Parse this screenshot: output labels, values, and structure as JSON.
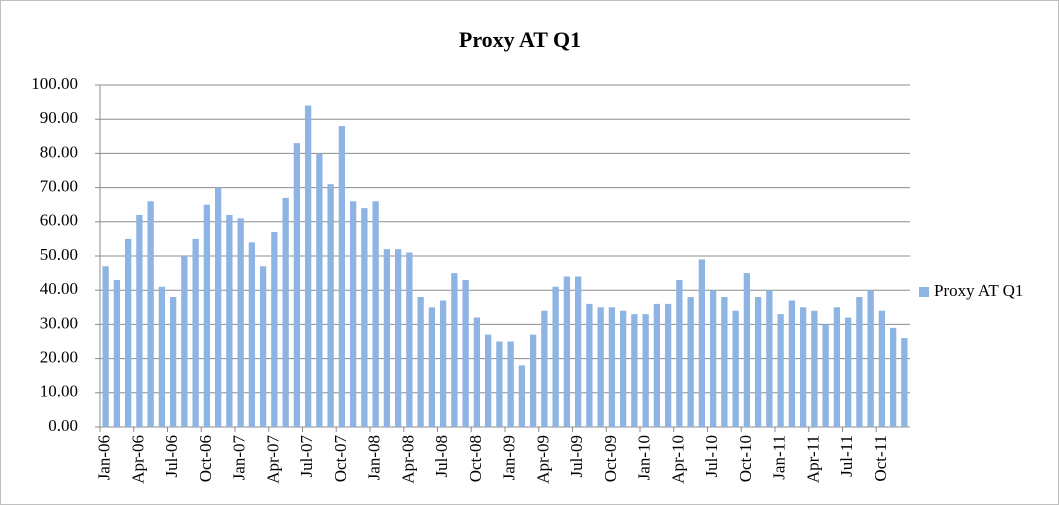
{
  "chart_data": {
    "type": "bar",
    "title": "Proxy AT Q1",
    "categories": [
      "Jan-06",
      null,
      null,
      "Apr-06",
      null,
      null,
      "Jul-06",
      null,
      null,
      "Oct-06",
      null,
      null,
      "Jan-07",
      null,
      null,
      "Apr-07",
      null,
      null,
      "Jul-07",
      null,
      null,
      "Oct-07",
      null,
      null,
      "Jan-08",
      null,
      null,
      "Apr-08",
      null,
      null,
      "Jul-08",
      null,
      null,
      "Oct-08",
      null,
      null,
      "Jan-09",
      null,
      null,
      "Apr-09",
      null,
      null,
      "Jul-09",
      null,
      null,
      "Oct-09",
      null,
      null,
      "Jan-10",
      null,
      null,
      "Apr-10",
      null,
      null,
      "Jul-10",
      null,
      null,
      "Oct-10",
      null,
      null,
      "Jan-11",
      null,
      null,
      "Apr-11",
      null,
      null,
      "Jul-11",
      null,
      null,
      "Oct-11",
      null,
      null
    ],
    "series": [
      {
        "name": "Proxy AT Q1",
        "color": "#8db4e2",
        "values": [
          47,
          43,
          55,
          62,
          66,
          41,
          38,
          50,
          55,
          65,
          70,
          62,
          61,
          54,
          47,
          57,
          67,
          83,
          94,
          80,
          71,
          88,
          66,
          64,
          66,
          52,
          52,
          51,
          38,
          35,
          37,
          45,
          43,
          32,
          27,
          25,
          25,
          18,
          27,
          34,
          41,
          44,
          44,
          36,
          35,
          35,
          34,
          33,
          33,
          36,
          36,
          43,
          38,
          49,
          40,
          38,
          34,
          45,
          38,
          40,
          33,
          37,
          35,
          34,
          30,
          35,
          32,
          38,
          40,
          34,
          29,
          26
        ]
      }
    ],
    "ylim": [
      0,
      100
    ],
    "yticks": [
      {
        "value": 0,
        "label": "0.00"
      },
      {
        "value": 10,
        "label": "10.00"
      },
      {
        "value": 20,
        "label": "20.00"
      },
      {
        "value": 30,
        "label": "30.00"
      },
      {
        "value": 40,
        "label": "40.00"
      },
      {
        "value": 50,
        "label": "50.00"
      },
      {
        "value": 60,
        "label": "60.00"
      },
      {
        "value": 70,
        "label": "70.00"
      },
      {
        "value": 80,
        "label": "80.00"
      },
      {
        "value": 90,
        "label": "90.00"
      },
      {
        "value": 100,
        "label": "100.00"
      }
    ],
    "grid": true,
    "legend": "right"
  }
}
